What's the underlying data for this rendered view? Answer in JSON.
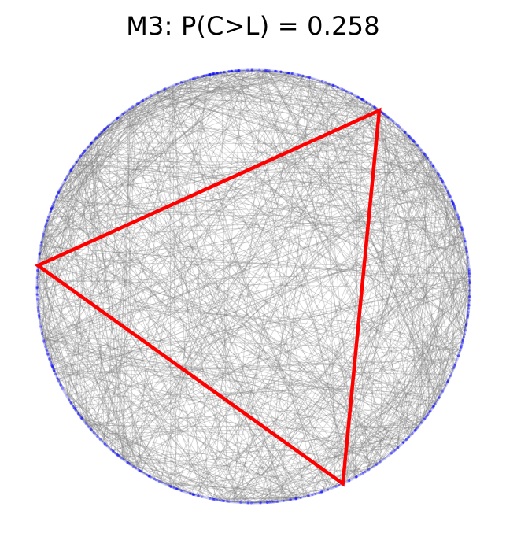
{
  "title": "M3: P(C>L) = 0.258",
  "diagram": {
    "type": "random chords in a circle with an inscribed triangle",
    "colors": {
      "chords": "#808080",
      "circle_points": "#0000ff",
      "triangle": "#ff0000",
      "background": "#ffffff"
    }
  }
}
